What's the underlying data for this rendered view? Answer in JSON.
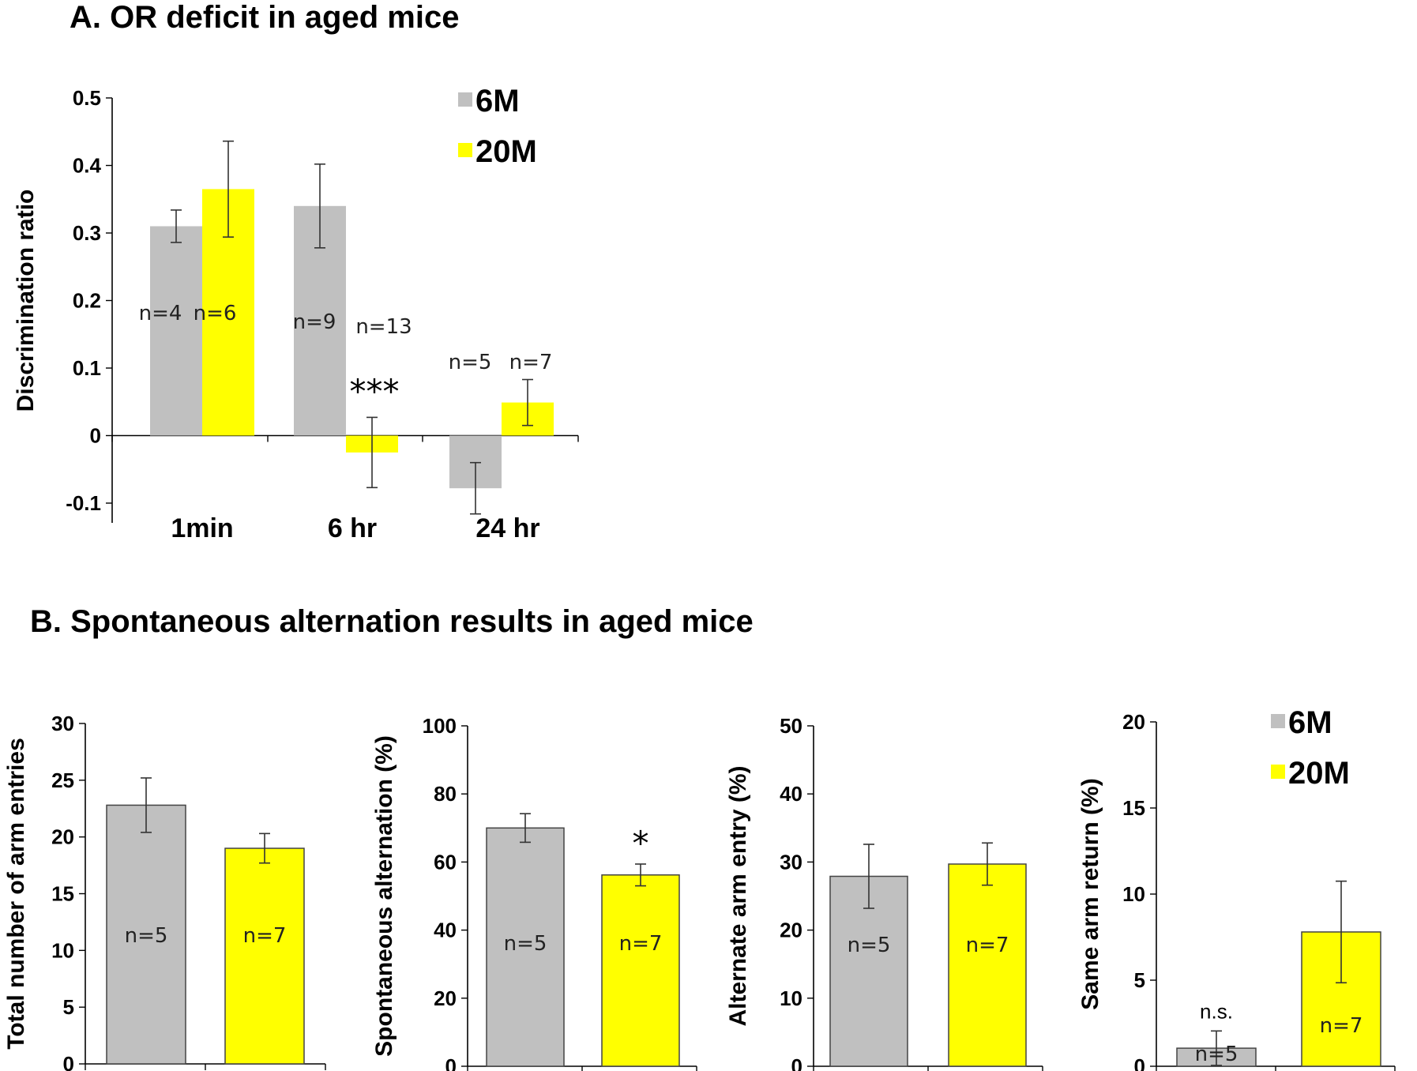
{
  "colors": {
    "6M": "#c0c0c0",
    "20M": "#ffff00",
    "axis": "#000000",
    "error": "#333333"
  },
  "panelA": {
    "title": "A. OR deficit in aged mice",
    "legend": [
      "6M",
      "20M"
    ]
  },
  "panelB": {
    "title": "B. Spontaneous alternation results in aged mice",
    "legend": [
      "6M",
      "20M"
    ]
  },
  "chart_data": [
    {
      "id": "A",
      "type": "bar",
      "title": "A. OR deficit in aged mice",
      "ylabel": "Discrimination  ratio",
      "xlabel": "",
      "ylim": [
        -0.1,
        0.5
      ],
      "yticks": [
        -0.1,
        0,
        0.1,
        0.2,
        0.3,
        0.4,
        0.5
      ],
      "ytick_labels": [
        "-0.1",
        "0",
        "0.1",
        "0.2",
        "0.3",
        "0.4",
        "0.5"
      ],
      "categories": [
        "1min",
        "6 hr",
        "24 hr"
      ],
      "series": [
        {
          "name": "6M",
          "values": [
            0.31,
            0.34,
            -0.078
          ],
          "errors": [
            0.024,
            0.062,
            0.038
          ],
          "n_labels": [
            "n=4",
            "n=9",
            "n=5"
          ]
        },
        {
          "name": "20M",
          "values": [
            0.365,
            -0.025,
            0.049
          ],
          "errors": [
            0.071,
            0.052,
            0.034
          ],
          "n_labels": [
            "n=6",
            "n=13",
            "n=7"
          ]
        }
      ],
      "annotations": [
        {
          "text": "***",
          "category": "6 hr",
          "series": "20M"
        }
      ]
    },
    {
      "id": "B1",
      "type": "bar",
      "title": "",
      "ylabel": "Total number of arm entries",
      "ylim": [
        0,
        30
      ],
      "yticks": [
        0,
        5,
        10,
        15,
        20,
        25,
        30
      ],
      "ytick_labels": [
        "0",
        "5",
        "10",
        "15",
        "20",
        "25",
        "30"
      ],
      "categories": [
        "6M",
        "20M"
      ],
      "values": [
        22.8,
        19.0
      ],
      "errors": [
        2.4,
        1.3
      ],
      "n_labels": [
        "n=5",
        "n=7"
      ],
      "annotations": []
    },
    {
      "id": "B2",
      "type": "bar",
      "title": "",
      "ylabel": "Spontaneous alternation (%)",
      "ylim": [
        0,
        100
      ],
      "yticks": [
        0,
        20,
        40,
        60,
        80,
        100
      ],
      "ytick_labels": [
        "0",
        "20",
        "40",
        "60",
        "80",
        "100"
      ],
      "categories": [
        "6M",
        "20M"
      ],
      "values": [
        70,
        56.2
      ],
      "errors": [
        4.2,
        3.2
      ],
      "n_labels": [
        "n=5",
        "n=7"
      ],
      "annotations": [
        {
          "text": "*",
          "index": 1
        }
      ]
    },
    {
      "id": "B3",
      "type": "bar",
      "title": "",
      "ylabel": "Alternate  arm entry (%)",
      "ylim": [
        0,
        50
      ],
      "yticks": [
        0,
        10,
        20,
        30,
        40,
        50
      ],
      "ytick_labels": [
        "0",
        "10",
        "20",
        "30",
        "40",
        "50"
      ],
      "categories": [
        "6M",
        "20M"
      ],
      "values": [
        27.9,
        29.7
      ],
      "errors": [
        4.7,
        3.1
      ],
      "n_labels": [
        "n=5",
        "n=7"
      ],
      "annotations": []
    },
    {
      "id": "B4",
      "type": "bar",
      "title": "",
      "ylabel": "Same arm return (%)",
      "ylim": [
        0,
        20
      ],
      "yticks": [
        0,
        5,
        10,
        15,
        20
      ],
      "ytick_labels": [
        "0",
        "5",
        "10",
        "15",
        "20"
      ],
      "categories": [
        "6M",
        "20M"
      ],
      "values": [
        1.05,
        7.8
      ],
      "errors": [
        1.0,
        2.95
      ],
      "n_labels": [
        "n=5",
        "n=7"
      ],
      "annotations": [
        {
          "text": "n.s.",
          "index": 0
        }
      ],
      "legend": [
        "6M",
        "20M"
      ]
    }
  ]
}
